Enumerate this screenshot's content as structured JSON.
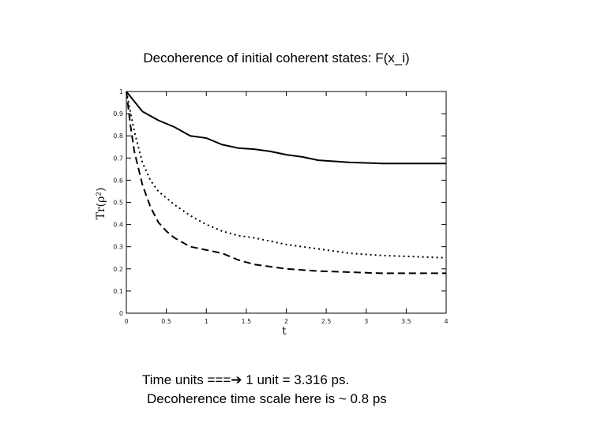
{
  "slide": {
    "title": "Decoherence of initial coherent states: F(x_i)",
    "caption_line1_prefix": "Time units ===",
    "caption_arrow": "➔",
    "caption_line1_suffix": " 1 unit = 3.316 ps.",
    "caption_line2": "Decoherence time scale here is ~ 0.8 ps"
  },
  "chart_data": {
    "type": "line",
    "title": "Decoherence of initial coherent states: F(x_i)",
    "xlabel": "t",
    "ylabel": "Tr(ρ²)",
    "xlim": [
      0,
      4
    ],
    "ylim": [
      0,
      1
    ],
    "xticks": [
      0,
      0.5,
      1,
      1.5,
      2,
      2.5,
      3,
      3.5,
      4
    ],
    "xtick_labels": [
      "0",
      "0.5",
      "1",
      "1.5",
      "2",
      "2.5",
      "3",
      "3.5",
      "4"
    ],
    "yticks": [
      0,
      0.1,
      0.2,
      0.3,
      0.4,
      0.5,
      0.6,
      0.7,
      0.8,
      0.9,
      1
    ],
    "ytick_labels": [
      "0",
      "0.1",
      "0.2",
      "0.3",
      "0.4",
      "0.5",
      "0.6",
      "0.7",
      "0.8",
      "0.9",
      "1"
    ],
    "grid": false,
    "series": [
      {
        "style": "solid",
        "x": [
          0,
          0.2,
          0.4,
          0.6,
          0.8,
          1.0,
          1.2,
          1.4,
          1.6,
          1.8,
          2.0,
          2.2,
          2.4,
          2.6,
          2.8,
          3.0,
          3.2,
          3.5,
          4.0
        ],
        "y": [
          1.0,
          0.91,
          0.87,
          0.84,
          0.8,
          0.79,
          0.76,
          0.745,
          0.74,
          0.73,
          0.715,
          0.705,
          0.69,
          0.685,
          0.68,
          0.678,
          0.675,
          0.675,
          0.675
        ]
      },
      {
        "style": "dotted",
        "x": [
          0,
          0.1,
          0.2,
          0.3,
          0.4,
          0.5,
          0.6,
          0.8,
          1.0,
          1.2,
          1.4,
          1.6,
          1.8,
          2.0,
          2.4,
          2.8,
          3.2,
          3.6,
          4.0
        ],
        "y": [
          1.0,
          0.82,
          0.68,
          0.6,
          0.55,
          0.52,
          0.49,
          0.44,
          0.4,
          0.37,
          0.35,
          0.34,
          0.325,
          0.31,
          0.29,
          0.27,
          0.26,
          0.255,
          0.25
        ]
      },
      {
        "style": "dashed",
        "x": [
          0,
          0.05,
          0.1,
          0.2,
          0.3,
          0.4,
          0.5,
          0.6,
          0.8,
          1.0,
          1.2,
          1.4,
          1.6,
          1.8,
          2.0,
          2.4,
          2.8,
          3.2,
          3.6,
          4.0
        ],
        "y": [
          1.0,
          0.85,
          0.73,
          0.58,
          0.48,
          0.41,
          0.37,
          0.34,
          0.3,
          0.285,
          0.27,
          0.24,
          0.22,
          0.21,
          0.2,
          0.19,
          0.185,
          0.18,
          0.18,
          0.18
        ]
      }
    ]
  }
}
